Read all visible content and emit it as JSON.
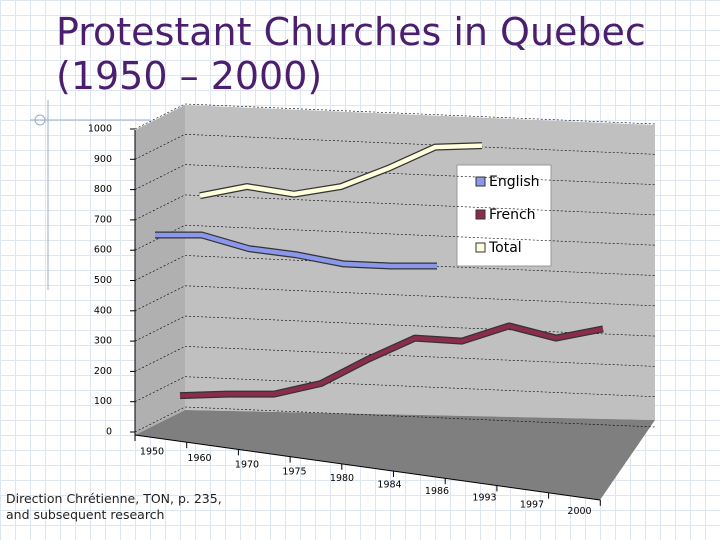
{
  "chart_data": {
    "type": "line",
    "title": "Protestant Churches in Quebec (1950 – 2000)",
    "note": "Direction Chrétienne, TON, p. 235, and subsequent research",
    "categories": [
      "1950",
      "1960",
      "1970",
      "1975",
      "1980",
      "1984",
      "1986",
      "1993",
      "1997",
      "2000"
    ],
    "series": [
      {
        "name": "English",
        "color": "#8a97ea",
        "values": [
          650,
          650,
          605,
          585,
          555,
          548,
          548,
          null,
          null,
          null
        ]
      },
      {
        "name": "French",
        "color": "#8b2c4e",
        "values": [
          120,
          125,
          125,
          160,
          240,
          310,
          300,
          350,
          310,
          340
        ]
      },
      {
        "name": "Total",
        "color": "#ffffdc",
        "values": [
          780,
          810,
          785,
          810,
          870,
          940,
          945,
          null,
          null,
          null
        ]
      }
    ],
    "ylim": [
      0,
      1000
    ],
    "yticks": [
      0,
      100,
      200,
      300,
      400,
      500,
      600,
      700,
      800,
      900,
      1000
    ],
    "grid": true,
    "legend": "right"
  }
}
